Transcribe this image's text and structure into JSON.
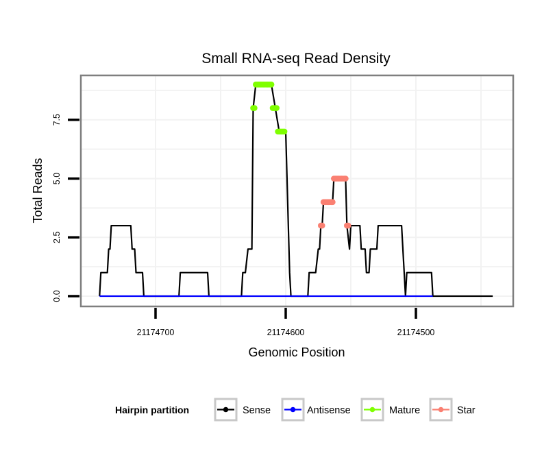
{
  "chart_data": {
    "type": "line",
    "title": "Small RNA-seq Read Density",
    "xlabel": "Genomic Position",
    "ylabel": "Total Reads",
    "x_reversed": true,
    "xlim": [
      21174785,
      21174440
    ],
    "ylim": [
      -0.45,
      9.4
    ],
    "x_ticks": [
      21174700,
      21174600,
      21174500
    ],
    "x_tick_labels": [
      "21174700",
      "21174600",
      "21174500"
    ],
    "x_minor_gridlines": [
      21174650,
      21174550,
      21174450
    ],
    "y_ticks": [
      0.0,
      2.5,
      5.0,
      7.5
    ],
    "y_tick_labels": [
      "0.0",
      "2.5",
      "5.0",
      "7.5"
    ],
    "y_minor_gridlines": [
      1.25,
      3.75,
      6.25,
      8.75
    ],
    "grid": true,
    "legend": {
      "title": "Hairpin partition",
      "placement": "bottom",
      "entries": [
        {
          "label": "Sense",
          "color": "#000000"
        },
        {
          "label": "Antisense",
          "color": "#0000ff"
        },
        {
          "label": "Mature",
          "color": "#7fff00"
        },
        {
          "label": "Star",
          "color": "#fa8072"
        }
      ]
    },
    "series": [
      {
        "name": "Sense",
        "color": "#000000",
        "kind": "line",
        "x": [
          21174743,
          21174742,
          21174737,
          21174736,
          21174735,
          21174734,
          21174719,
          21174718,
          21174716,
          21174715,
          21174710,
          21174709,
          21174682,
          21174681,
          21174660,
          21174659,
          21174634,
          21174633,
          21174631,
          21174629,
          21174626,
          21174625,
          21174623,
          21174611,
          21174608,
          21174605,
          21174600,
          21174597,
          21174596,
          21174583,
          21174582,
          21174577,
          21174575,
          21174574,
          21174573,
          21174572,
          21174571,
          21174564,
          21174563,
          21174554,
          21174553,
          21174551,
          21174550,
          21174543,
          21174542,
          21174539,
          21174538,
          21174536,
          21174535,
          21174530,
          21174529,
          21174511,
          21174508,
          21174507,
          21174488,
          21174487,
          21174441
        ],
        "y": [
          0,
          1,
          1,
          2,
          2,
          3,
          3,
          2,
          2,
          1,
          1,
          0,
          0,
          1,
          1,
          0,
          0,
          1,
          1,
          2,
          2,
          8,
          9,
          9,
          8,
          7,
          7,
          1,
          0,
          0,
          1,
          1,
          2,
          2,
          3,
          3,
          4,
          4,
          5,
          5,
          3,
          2,
          3,
          3,
          2,
          2,
          1,
          1,
          2,
          2,
          3,
          3,
          0,
          1,
          1,
          0,
          0
        ]
      },
      {
        "name": "Antisense",
        "color": "#0000ff",
        "kind": "line",
        "x": [
          21174743,
          21174487
        ],
        "y": [
          0,
          0
        ]
      },
      {
        "name": "Mature",
        "color": "#7fff00",
        "kind": "points",
        "x": [
          21174625,
          21174624,
          21174623,
          21174622,
          21174621,
          21174620,
          21174619,
          21174618,
          21174617,
          21174616,
          21174615,
          21174614,
          21174613,
          21174612,
          21174611,
          21174610,
          21174609,
          21174608,
          21174607,
          21174606,
          21174605,
          21174604,
          21174603,
          21174602,
          21174601
        ],
        "y": [
          8,
          8,
          9,
          9,
          9,
          9,
          9,
          9,
          9,
          9,
          9,
          9,
          9,
          9,
          9,
          8,
          8,
          8,
          8,
          7,
          7,
          7,
          7,
          7,
          7
        ]
      },
      {
        "name": "Star",
        "color": "#fa8072",
        "kind": "points",
        "x": [
          21174573,
          21174572,
          21174571,
          21174570,
          21174569,
          21174568,
          21174567,
          21174566,
          21174565,
          21174564,
          21174563,
          21174562,
          21174561,
          21174560,
          21174559,
          21174558,
          21174557,
          21174556,
          21174555,
          21174554,
          21174553,
          21174552
        ],
        "y": [
          3,
          3,
          4,
          4,
          4,
          4,
          4,
          4,
          4,
          4,
          5,
          5,
          5,
          5,
          5,
          5,
          5,
          5,
          5,
          5,
          3,
          3
        ]
      }
    ]
  }
}
